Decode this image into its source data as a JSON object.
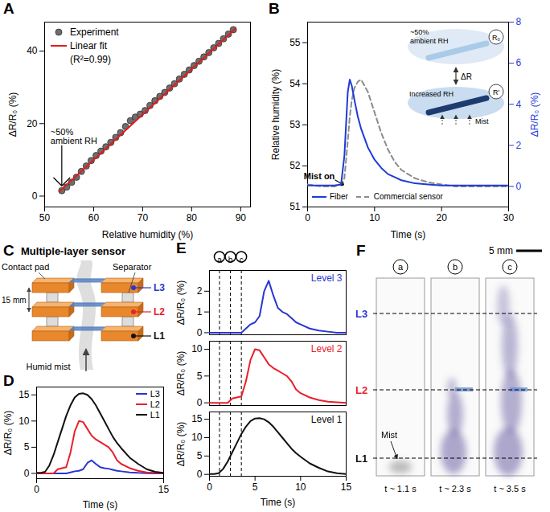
{
  "chart_data": [
    {
      "panel": "A",
      "type": "scatter",
      "xlabel": "Relative humidity (%)",
      "ylabel": "ΔR/R₀ (%)",
      "xlim": [
        50,
        92
      ],
      "xticks": [
        50,
        60,
        70,
        80,
        90
      ],
      "ylim": [
        -3,
        48
      ],
      "yticks": [
        0,
        20,
        40
      ],
      "legend": "upper left",
      "series": [
        {
          "name": "Experiment",
          "type": "scatter",
          "marker": "circle",
          "color": "#6e6e6e",
          "x": [
            53.5,
            54.5,
            55.5,
            56.5,
            57.5,
            58.5,
            59.5,
            60.5,
            61.5,
            62.5,
            63.5,
            64.5,
            65.5,
            66.5,
            67.5,
            68.5,
            69.5,
            70.5,
            71.5,
            72.5,
            73.5,
            74.5,
            75.5,
            76.5,
            77.5,
            78.5,
            79.5,
            80.5,
            81.5,
            82.5,
            83.5,
            84.5,
            85.5,
            86.5,
            87.5,
            88.5
          ],
          "values": [
            1.5,
            2.5,
            3.8,
            5.2,
            6.8,
            8.3,
            9.8,
            11.2,
            12.4,
            13.6,
            14.8,
            16.2,
            17.5,
            19.2,
            20.8,
            21.8,
            22.6,
            23.6,
            25,
            26.3,
            27.5,
            28.6,
            29.8,
            31,
            32.3,
            33.6,
            34.8,
            36,
            37.2,
            38.4,
            39.6,
            40.9,
            42.1,
            43.4,
            44.7,
            45.9
          ]
        },
        {
          "name": "Linear fit",
          "type": "line",
          "color": "#e41a1c",
          "x": [
            53,
            89
          ],
          "values": [
            1.2,
            46.3
          ]
        }
      ],
      "annotations": [
        {
          "text": "~50% ambient RH",
          "x": 53.5,
          "y": 1.5
        },
        {
          "text": "(R²=0.99)"
        }
      ]
    },
    {
      "panel": "B",
      "type": "line",
      "xlabel": "Time (s)",
      "ylabel": "Relative humidity (%)",
      "y2label": "ΔR/R₀ (%)",
      "xlim": [
        0,
        30
      ],
      "xticks": [
        0,
        10,
        20,
        30
      ],
      "ylim": [
        51,
        55.5
      ],
      "yticks": [
        51,
        52,
        53,
        54,
        55
      ],
      "y2lim": [
        -1,
        8
      ],
      "y2ticks": [
        0,
        2,
        4,
        6,
        8
      ],
      "legend": "lower left",
      "x": [
        0,
        2,
        4,
        5,
        5.5,
        6,
        6.3,
        6.6,
        7,
        7.5,
        8,
        9,
        10,
        11,
        12,
        13,
        14,
        16,
        18,
        20,
        22,
        25,
        28,
        30
      ],
      "series": [
        {
          "name": "Fiber",
          "color": "#1f3ad6",
          "axis": "y2",
          "line_style": "solid",
          "values": [
            0.05,
            0.05,
            0.05,
            0.1,
            1.5,
            4.6,
            5.2,
            4.9,
            4.2,
            3.4,
            2.8,
            1.9,
            1.3,
            0.9,
            0.6,
            0.45,
            0.3,
            0.15,
            0.1,
            0.05,
            0.05,
            0.05,
            0.05,
            0.05
          ]
        },
        {
          "name": "Commercial sensor",
          "color": "#8c8c8c",
          "line_style": "dashed",
          "values": [
            51.55,
            51.5,
            51.5,
            51.55,
            51.7,
            52.6,
            53.2,
            53.6,
            53.9,
            54.05,
            54.1,
            53.8,
            53.3,
            52.8,
            52.4,
            52.1,
            51.9,
            51.7,
            51.6,
            51.55,
            51.5,
            51.5,
            51.5,
            51.5
          ]
        }
      ],
      "annotations": [
        {
          "text": "Mist on",
          "x": 5.5,
          "y": 51.5
        }
      ],
      "inset": {
        "ambient": "~50% ambient RH",
        "r0": "R₀",
        "change": "ΔR",
        "increased": "Increased RH",
        "r1": "R′",
        "stimulus": "Mist"
      }
    },
    {
      "panel": "D",
      "type": "line",
      "xlabel": "Time (s)",
      "ylabel": "ΔR/R₀ (%)",
      "xlim": [
        0,
        15
      ],
      "xticks": [
        0,
        15
      ],
      "ylim": [
        -1,
        16.5
      ],
      "yticks": [
        0,
        5,
        10,
        15
      ],
      "legend": "upper right",
      "x": [
        0,
        0.5,
        1,
        1.5,
        2,
        2.5,
        3,
        3.5,
        4,
        4.5,
        5,
        5.5,
        6,
        6.5,
        7,
        7.5,
        8,
        8.5,
        9,
        9.5,
        10,
        11,
        12,
        13,
        14,
        15
      ],
      "series": [
        {
          "name": "L3",
          "color": "#2a35d0",
          "values": [
            0,
            0,
            0,
            0,
            0,
            0,
            0,
            0,
            0.2,
            0.4,
            0.5,
            0.8,
            2,
            2.5,
            1.8,
            1.2,
            1,
            0.9,
            0.7,
            0.5,
            0.4,
            0.2,
            0.1,
            0.05,
            0,
            0
          ]
        },
        {
          "name": "L2",
          "color": "#e8202a",
          "values": [
            0,
            0,
            0,
            0,
            0,
            0.8,
            1,
            1.2,
            4,
            8,
            10,
            9.8,
            8.5,
            7.2,
            6.5,
            6,
            5.5,
            5,
            4,
            2.5,
            1.8,
            1,
            0.5,
            0.2,
            0.1,
            0
          ]
        },
        {
          "name": "L1",
          "color": "#111111",
          "values": [
            0.1,
            0.1,
            0.3,
            1.5,
            3.5,
            6,
            8.5,
            11,
            13,
            14.5,
            15.2,
            15.3,
            15,
            14.2,
            13,
            11.5,
            10,
            8.5,
            7,
            5.8,
            4.8,
            3,
            1.8,
            0.8,
            0.3,
            0.1
          ]
        }
      ]
    },
    {
      "panel": "E",
      "type": "line",
      "xlabel": "Time (s)",
      "xlim": [
        0,
        15
      ],
      "xticks": [
        0,
        5,
        10,
        15
      ],
      "x": [
        0,
        0.5,
        1,
        1.5,
        2,
        2.5,
        3,
        3.5,
        4,
        4.5,
        5,
        5.5,
        6,
        6.5,
        7,
        7.5,
        8,
        8.5,
        9,
        9.5,
        10,
        11,
        12,
        13,
        14,
        15
      ],
      "event_lines": {
        "x": [
          1.1,
          2.3,
          3.5
        ],
        "labels": [
          "a",
          "b",
          "c"
        ]
      },
      "subplots": [
        {
          "ylabel": "ΔR/R₀ (%)",
          "ylim": [
            -0.1,
            3
          ],
          "yticks": [
            0,
            1,
            2
          ],
          "series": [
            {
              "name": "Level 3",
              "color": "#2a35d0",
              "values": [
                0,
                0,
                0,
                0,
                0,
                0,
                0,
                0,
                0.2,
                0.4,
                0.5,
                0.8,
                2,
                2.5,
                1.8,
                1.2,
                1,
                0.9,
                0.7,
                0.5,
                0.4,
                0.2,
                0.1,
                0.05,
                0,
                0
              ]
            }
          ]
        },
        {
          "ylabel": "ΔR/R₀ (%)",
          "ylim": [
            -0.5,
            11.5
          ],
          "yticks": [
            0,
            5,
            10
          ],
          "series": [
            {
              "name": "Level 2",
              "color": "#e8202a",
              "values": [
                0,
                0,
                0,
                0,
                0,
                0.8,
                1,
                1.2,
                4,
                8,
                10,
                9.8,
                8.5,
                7.2,
                6.5,
                6,
                5.5,
                5,
                4,
                2.5,
                1.8,
                1,
                0.5,
                0.2,
                0.1,
                0
              ]
            }
          ]
        },
        {
          "ylabel": "ΔR/R₀ (%)",
          "ylim": [
            -0.5,
            17
          ],
          "yticks": [
            0,
            5,
            10,
            15
          ],
          "series": [
            {
              "name": "Level 1",
              "color": "#111111",
              "values": [
                0.1,
                0.1,
                0.3,
                1.5,
                3.5,
                6,
                8.5,
                11,
                13,
                14.5,
                15.2,
                15.3,
                15,
                14.2,
                13,
                11.5,
                10,
                8.5,
                7,
                5.8,
                4.8,
                3,
                1.8,
                0.8,
                0.3,
                0.1
              ]
            }
          ]
        }
      ]
    }
  ],
  "diagrams": {
    "C": {
      "panel": "C",
      "title": "Multiple-layer sensor",
      "contact_pad": "Contact pad",
      "separator": "Separator",
      "spacing": "15 mm",
      "levels": [
        "L3",
        "L2",
        "L1"
      ],
      "level_colors": [
        "#2a35d0",
        "#e8202a",
        "#111111"
      ],
      "stimulus": "Humid mist"
    },
    "F": {
      "panel": "F",
      "scale_bar": "5 mm",
      "levels": [
        "L3",
        "L2",
        "L1"
      ],
      "level_colors": [
        "#2a35d0",
        "#e8202a",
        "#111111"
      ],
      "stimulus": "Mist",
      "frames": [
        {
          "label": "a",
          "time": "t ~ 1.1 s"
        },
        {
          "label": "b",
          "time": "t ~ 2.3 s"
        },
        {
          "label": "c",
          "time": "t ~ 3.5 s"
        }
      ]
    }
  }
}
